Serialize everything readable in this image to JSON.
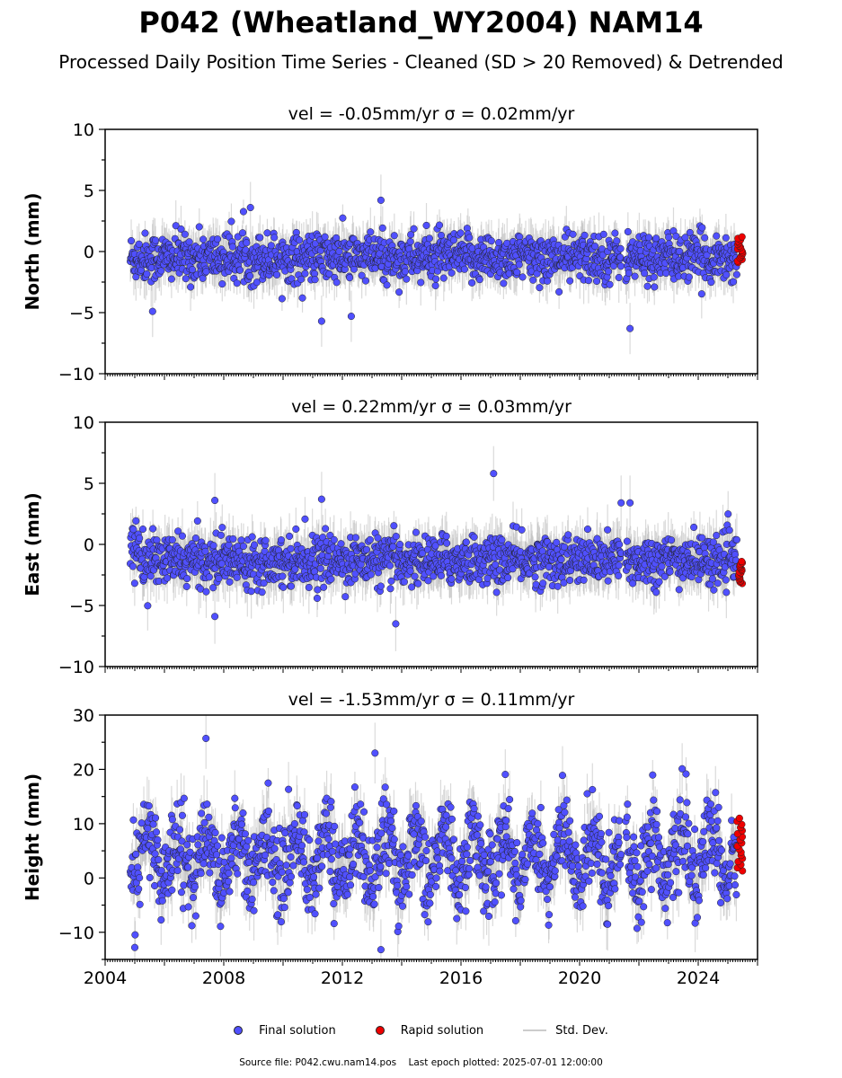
{
  "title": "P042 (Wheatland_WY2004) NAM14",
  "subtitle": "Processed Daily Position Time Series - Cleaned (SD > 20 Removed) & Detrended",
  "legend": {
    "final_label": "Final solution",
    "rapid_label": "Rapid solution",
    "std_label": "Std. Dev."
  },
  "footer": {
    "source_label": "Source file:",
    "source_file": "P042.cwu.nam14.pos",
    "last_epoch_label": "Last epoch plotted:",
    "last_epoch": "2025-07-01 12:00:00"
  },
  "colors": {
    "final": "#5050ff",
    "rapid": "#ee0000",
    "std": "#bbbbbb",
    "marker_edge": "#222222"
  },
  "chart_data": [
    {
      "type": "scatter",
      "name": "north",
      "title": "vel = -0.05mm/yr   σ = 0.02mm/yr",
      "ylabel": "North (mm)",
      "xlim": [
        2004.0,
        2026.0
      ],
      "ylim": [
        -10,
        10
      ],
      "yticks": [
        -10,
        -5,
        0,
        5,
        10
      ],
      "xticks": [
        2004,
        2008,
        2012,
        2016,
        2020,
        2024
      ],
      "xtick_labels_shown": false,
      "series_final": {
        "x_range": [
          2004.85,
          2025.3
        ],
        "mean_y": -0.5,
        "spread_sd": 1.1,
        "typical_error": 1.5,
        "gap": [
          2021.4,
          2021.55
        ],
        "outliers": [
          [
            2011.3,
            -5.7
          ],
          [
            2012.3,
            -5.3
          ],
          [
            2013.3,
            4.2
          ],
          [
            2021.7,
            -6.3
          ],
          [
            2005.6,
            -4.9
          ],
          [
            2008.9,
            3.6
          ]
        ]
      },
      "series_rapid": {
        "x_range": [
          2025.3,
          2025.5
        ],
        "y_range": [
          -0.9,
          1.2
        ]
      }
    },
    {
      "type": "scatter",
      "name": "east",
      "title": "vel = 0.22mm/yr   σ = 0.03mm/yr",
      "ylabel": "East (mm)",
      "xlim": [
        2004.0,
        2026.0
      ],
      "ylim": [
        -10,
        10
      ],
      "yticks": [
        -10,
        -5,
        0,
        5,
        10
      ],
      "xticks": [
        2004,
        2008,
        2012,
        2016,
        2020,
        2024
      ],
      "xtick_labels_shown": false,
      "series_final": {
        "x_range": [
          2004.85,
          2025.3
        ],
        "mean_y": -1.3,
        "spread_sd": 1.1,
        "typical_error": 1.6,
        "gap": [
          2021.4,
          2021.55
        ],
        "outliers": [
          [
            2017.1,
            5.8
          ],
          [
            2011.3,
            3.7
          ],
          [
            2007.7,
            3.6
          ],
          [
            2013.8,
            -6.5
          ],
          [
            2007.7,
            -5.9
          ],
          [
            2021.4,
            3.4
          ],
          [
            2021.7,
            3.4
          ]
        ]
      },
      "series_rapid": {
        "x_range": [
          2025.3,
          2025.5
        ],
        "y_range": [
          -3.2,
          -1.4
        ]
      }
    },
    {
      "type": "scatter",
      "name": "height",
      "title": "vel = -1.53mm/yr   σ = 0.11mm/yr",
      "ylabel": "Height (mm)",
      "xlim": [
        2004.0,
        2026.0
      ],
      "ylim": [
        -15,
        30
      ],
      "yticks": [
        -10,
        0,
        10,
        20,
        30
      ],
      "xticks": [
        2004,
        2008,
        2012,
        2016,
        2020,
        2024
      ],
      "xtick_labels": [
        "2004",
        "2008",
        "2012",
        "2016",
        "2020",
        "2024"
      ],
      "xtick_labels_shown": true,
      "series_final": {
        "x_range": [
          2004.85,
          2025.3
        ],
        "mean_y": 4.0,
        "spread_sd": 5.5,
        "typical_error": 4.0,
        "gap": [
          2021.4,
          2021.55
        ],
        "outliers": [
          [
            2007.4,
            25.7
          ],
          [
            2013.3,
            -13.2
          ],
          [
            2005.0,
            -12.8
          ],
          [
            2013.1,
            23.0
          ]
        ]
      },
      "series_rapid": {
        "x_range": [
          2025.3,
          2025.5
        ],
        "y_range": [
          1.3,
          11.0
        ]
      }
    }
  ]
}
